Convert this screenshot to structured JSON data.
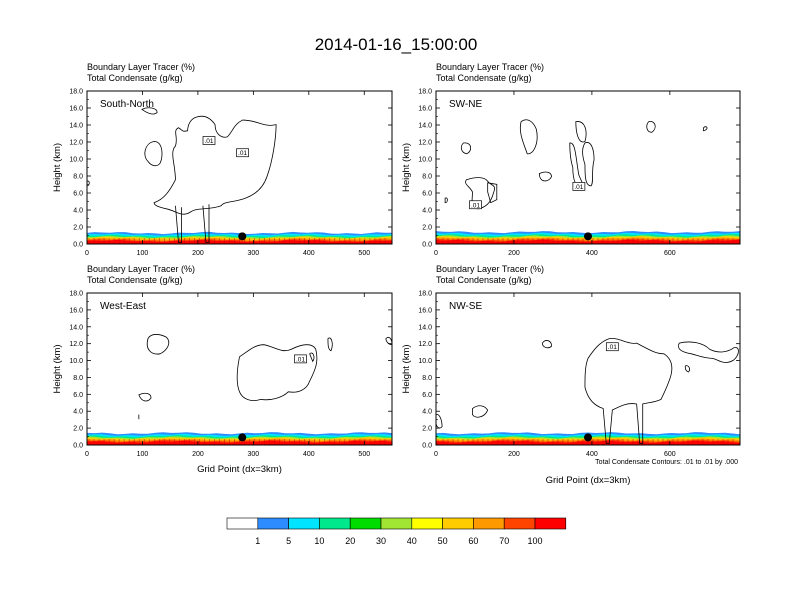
{
  "title": "2014-01-16_15:00:00",
  "subtitle_line1": "Boundary Layer Tracer   (%)",
  "subtitle_line2": "Total Condensate   (g/kg)",
  "y_axis_label": "Height (km)",
  "x_axis_label": "Grid Point (dx=3km)",
  "contour_note": "Total Condensate Contours: .01 to .01 by .000",
  "contour_label": ".01",
  "colorbar": {
    "labels": [
      "1",
      "5",
      "10",
      "20",
      "30",
      "40",
      "50",
      "60",
      "70",
      "100"
    ],
    "colors": [
      "#ffffff",
      "#2d8cff",
      "#00e4ff",
      "#00e88c",
      "#00dc00",
      "#a0e632",
      "#ffff00",
      "#ffcc00",
      "#ff9900",
      "#ff4400",
      "#ff0000"
    ]
  },
  "chart_data": [
    {
      "type": "heatmap",
      "panel": "South-North",
      "xlim": [
        0,
        550
      ],
      "xticks": [
        0,
        100,
        200,
        300,
        400,
        500
      ],
      "ylim": [
        0,
        18
      ],
      "yticks": [
        "0.0",
        "2.0",
        "4.0",
        "6.0",
        "8.0",
        "10.0",
        "12.0",
        "14.0",
        "16.0",
        "18.0"
      ],
      "marker_x": 280,
      "marker_height_km": 0.9,
      "boundary_layer_top_km": 1.3
    },
    {
      "type": "heatmap",
      "panel": "SW-NE",
      "xlim": [
        0,
        780
      ],
      "xticks": [
        0,
        200,
        400,
        600
      ],
      "ylim": [
        0,
        18
      ],
      "yticks": [
        "0.0",
        "2.0",
        "4.0",
        "6.0",
        "8.0",
        "10.0",
        "12.0",
        "14.0",
        "16.0",
        "18.0"
      ],
      "marker_x": 390,
      "marker_height_km": 0.9,
      "boundary_layer_top_km": 1.4
    },
    {
      "type": "heatmap",
      "panel": "West-East",
      "xlim": [
        0,
        550
      ],
      "xticks": [
        0,
        100,
        200,
        300,
        400,
        500
      ],
      "ylim": [
        0,
        18
      ],
      "yticks": [
        "0.0",
        "2.0",
        "4.0",
        "6.0",
        "8.0",
        "10.0",
        "12.0",
        "14.0",
        "16.0",
        "18.0"
      ],
      "marker_x": 280,
      "marker_height_km": 0.9,
      "boundary_layer_top_km": 1.4
    },
    {
      "type": "heatmap",
      "panel": "NW-SE",
      "xlim": [
        0,
        780
      ],
      "xticks": [
        0,
        200,
        400,
        600
      ],
      "ylim": [
        0,
        18
      ],
      "yticks": [
        "0.0",
        "2.0",
        "4.0",
        "6.0",
        "8.0",
        "10.0",
        "12.0",
        "14.0",
        "16.0",
        "18.0"
      ],
      "marker_x": 390,
      "marker_height_km": 0.9,
      "boundary_layer_top_km": 1.4
    }
  ]
}
